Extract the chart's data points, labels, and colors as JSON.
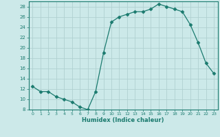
{
  "x": [
    0,
    1,
    2,
    3,
    4,
    5,
    6,
    7,
    8,
    9,
    10,
    11,
    12,
    13,
    14,
    15,
    16,
    17,
    18,
    19,
    20,
    21,
    22,
    23
  ],
  "y": [
    12.5,
    11.5,
    11.5,
    10.5,
    10.0,
    9.5,
    8.5,
    8.0,
    11.5,
    19.0,
    25.0,
    26.0,
    26.5,
    27.0,
    27.0,
    27.5,
    28.5,
    28.0,
    27.5,
    27.0,
    24.5,
    21.0,
    17.0,
    15.0
  ],
  "line_color": "#1a7a6e",
  "marker": "D",
  "marker_size": 2.5,
  "xlabel": "Humidex (Indice chaleur)",
  "xlim": [
    -0.5,
    23.5
  ],
  "ylim": [
    8,
    29
  ],
  "yticks": [
    8,
    10,
    12,
    14,
    16,
    18,
    20,
    22,
    24,
    26,
    28
  ],
  "xticks": [
    0,
    1,
    2,
    3,
    4,
    5,
    6,
    7,
    8,
    9,
    10,
    11,
    12,
    13,
    14,
    15,
    16,
    17,
    18,
    19,
    20,
    21,
    22,
    23
  ],
  "bg_color": "#cce9e9",
  "grid_color": "#b0d0d0"
}
